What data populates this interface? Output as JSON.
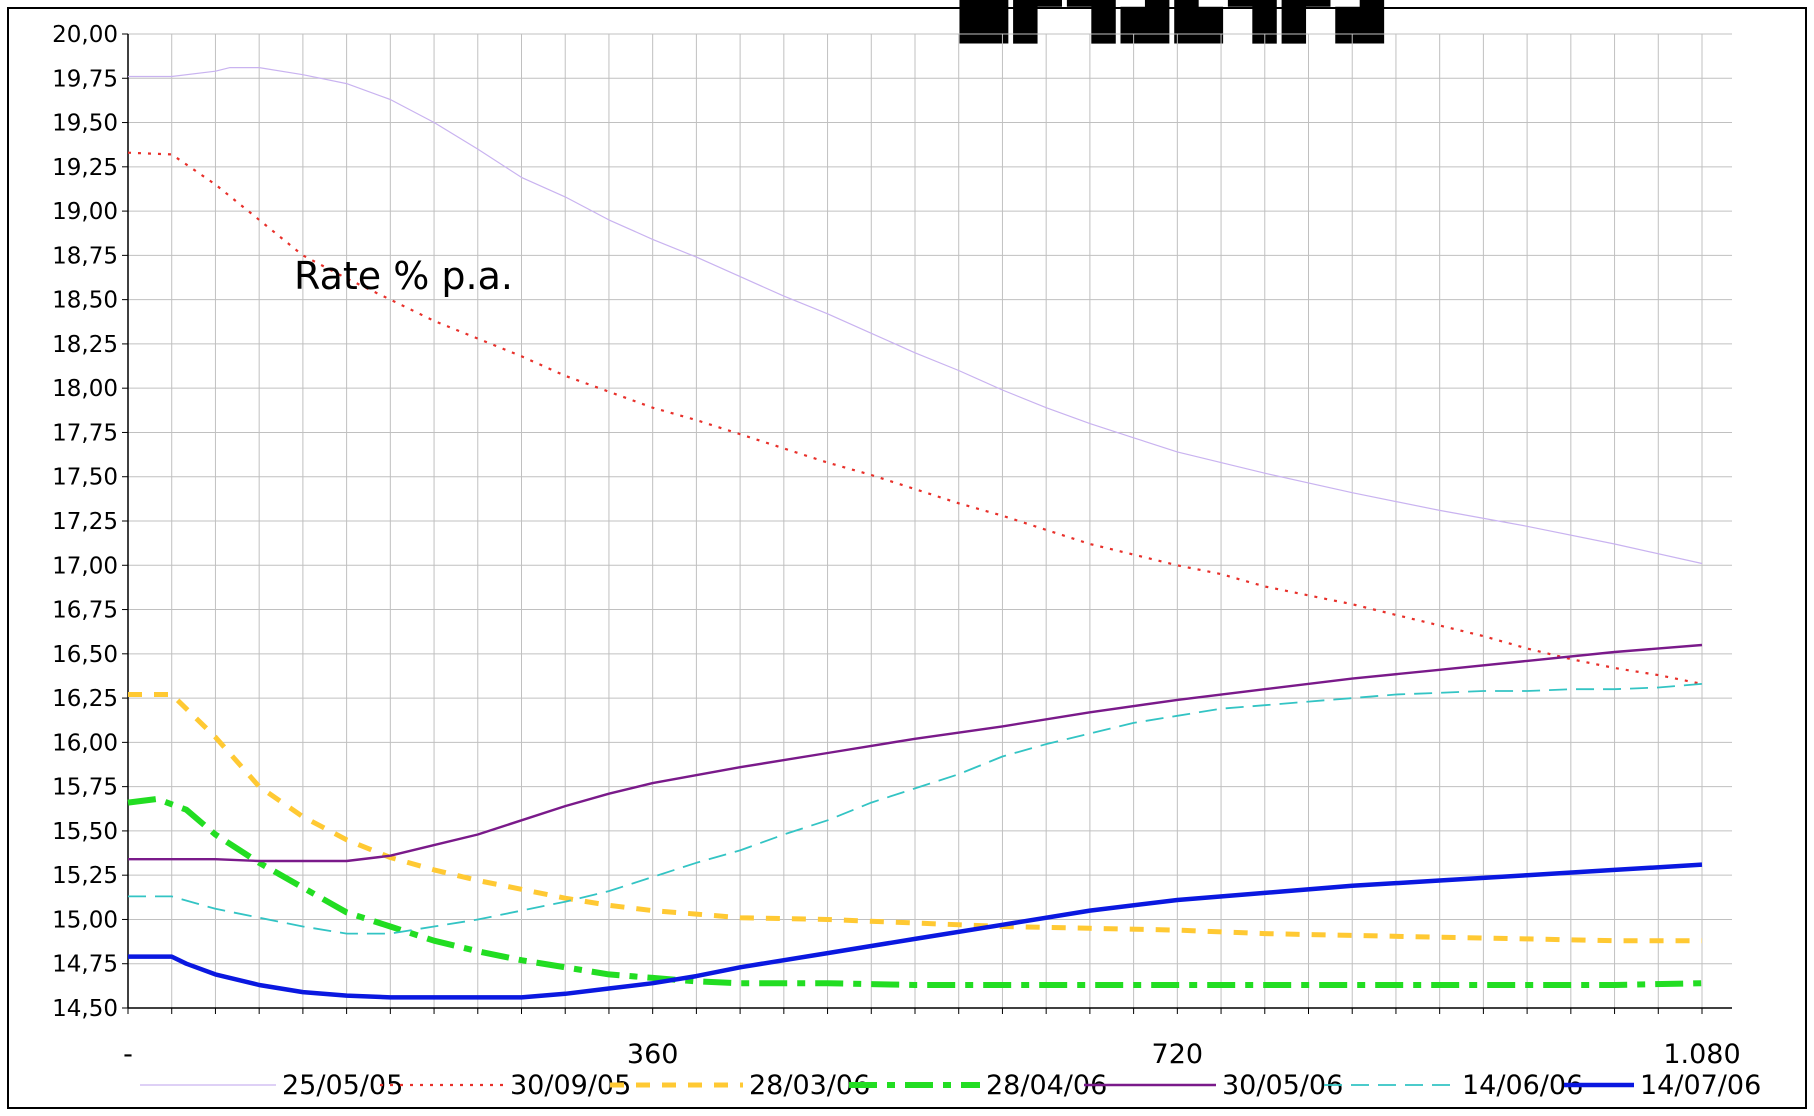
{
  "chart_data": {
    "type": "line",
    "title": "",
    "annotation": "Rate % p.a.",
    "xlabel": "",
    "ylabel": "",
    "xlim": [
      0,
      1080
    ],
    "ylim": [
      14.5,
      20.0
    ],
    "x_ticks": [
      0,
      360,
      720,
      1080
    ],
    "x_tick_labels": [
      "-",
      "360",
      "720",
      "1.080"
    ],
    "y_ticks": [
      14.5,
      14.75,
      15.0,
      15.25,
      15.5,
      15.75,
      16.0,
      16.25,
      16.5,
      16.75,
      17.0,
      17.25,
      17.5,
      17.75,
      18.0,
      18.25,
      18.5,
      18.75,
      19.0,
      19.25,
      19.5,
      19.75,
      20.0
    ],
    "y_tick_labels": [
      "14,50",
      "14,75",
      "15,00",
      "15,25",
      "15,50",
      "15,75",
      "16,00",
      "16,25",
      "16,50",
      "16,75",
      "17,00",
      "17,25",
      "17,50",
      "17,75",
      "18,00",
      "18,25",
      "18,50",
      "18,75",
      "19,00",
      "19,25",
      "19,50",
      "19,75",
      "20,00"
    ],
    "grid": true,
    "legend_position": "bottom",
    "series": [
      {
        "name": "25/05/05",
        "color": "#c9b3f0",
        "style": "solid-thin",
        "x": [
          0,
          30,
          60,
          70,
          90,
          120,
          150,
          180,
          210,
          240,
          270,
          300,
          330,
          360,
          390,
          420,
          450,
          480,
          510,
          540,
          570,
          600,
          630,
          660,
          690,
          720,
          780,
          840,
          900,
          960,
          1020,
          1080
        ],
        "y": [
          19.76,
          19.76,
          19.79,
          19.81,
          19.81,
          19.77,
          19.72,
          19.63,
          19.5,
          19.35,
          19.19,
          19.08,
          18.95,
          18.84,
          18.74,
          18.63,
          18.52,
          18.42,
          18.31,
          18.2,
          18.1,
          17.99,
          17.89,
          17.8,
          17.72,
          17.64,
          17.52,
          17.41,
          17.31,
          17.22,
          17.12,
          17.01
        ]
      },
      {
        "name": "30/09/05",
        "color": "#e8302a",
        "style": "dotted",
        "x": [
          0,
          30,
          60,
          90,
          120,
          150,
          180,
          210,
          240,
          270,
          300,
          330,
          360,
          390,
          420,
          450,
          480,
          510,
          540,
          570,
          600,
          630,
          660,
          690,
          720,
          750,
          780,
          810,
          840,
          870,
          900,
          930,
          960,
          990,
          1020,
          1050,
          1080
        ],
        "y": [
          19.33,
          19.32,
          19.15,
          18.95,
          18.75,
          18.62,
          18.5,
          18.38,
          18.28,
          18.18,
          18.07,
          17.98,
          17.89,
          17.82,
          17.74,
          17.66,
          17.58,
          17.51,
          17.43,
          17.35,
          17.28,
          17.2,
          17.12,
          17.06,
          17.0,
          16.95,
          16.88,
          16.83,
          16.78,
          16.72,
          16.66,
          16.6,
          16.53,
          16.47,
          16.42,
          16.38,
          16.33
        ]
      },
      {
        "name": "28/03/06",
        "color": "#ffc933",
        "style": "dashed",
        "x": [
          0,
          30,
          60,
          90,
          120,
          150,
          180,
          210,
          240,
          270,
          300,
          330,
          360,
          390,
          420,
          480,
          540,
          600,
          660,
          720,
          780,
          840,
          900,
          960,
          1020,
          1080
        ],
        "y": [
          16.27,
          16.27,
          16.03,
          15.75,
          15.58,
          15.45,
          15.35,
          15.28,
          15.22,
          15.17,
          15.12,
          15.08,
          15.05,
          15.03,
          15.01,
          15.0,
          14.98,
          14.96,
          14.95,
          14.94,
          14.92,
          14.91,
          14.9,
          14.89,
          14.88,
          14.88
        ]
      },
      {
        "name": "28/04/06",
        "color": "#22dd22",
        "style": "dashdot-thick",
        "x": [
          0,
          20,
          40,
          60,
          90,
          120,
          150,
          180,
          210,
          240,
          270,
          300,
          330,
          360,
          390,
          420,
          480,
          540,
          600,
          660,
          720,
          780,
          840,
          900,
          960,
          1020,
          1080
        ],
        "y": [
          15.66,
          15.68,
          15.62,
          15.48,
          15.32,
          15.18,
          15.04,
          14.96,
          14.88,
          14.82,
          14.77,
          14.73,
          14.69,
          14.67,
          14.65,
          14.64,
          14.64,
          14.63,
          14.63,
          14.63,
          14.63,
          14.63,
          14.63,
          14.63,
          14.63,
          14.63,
          14.64
        ]
      },
      {
        "name": "30/05/06",
        "color": "#7a1a8a",
        "style": "solid",
        "x": [
          0,
          30,
          60,
          90,
          120,
          150,
          170,
          180,
          210,
          240,
          270,
          300,
          330,
          360,
          420,
          480,
          540,
          600,
          660,
          720,
          780,
          840,
          900,
          960,
          1020,
          1080
        ],
        "y": [
          15.34,
          15.34,
          15.34,
          15.33,
          15.33,
          15.33,
          15.35,
          15.36,
          15.42,
          15.48,
          15.56,
          15.64,
          15.71,
          15.77,
          15.86,
          15.94,
          16.02,
          16.09,
          16.17,
          16.24,
          16.3,
          16.36,
          16.41,
          16.46,
          16.51,
          16.55
        ]
      },
      {
        "name": "14/06/06",
        "color": "#33c4c4",
        "style": "dashed-long",
        "x": [
          0,
          30,
          60,
          90,
          120,
          150,
          180,
          210,
          240,
          270,
          300,
          330,
          360,
          390,
          420,
          450,
          480,
          510,
          540,
          570,
          600,
          630,
          660,
          690,
          720,
          750,
          780,
          810,
          840,
          870,
          900,
          930,
          960,
          990,
          1020,
          1050,
          1080
        ],
        "y": [
          15.13,
          15.13,
          15.06,
          15.01,
          14.96,
          14.92,
          14.92,
          14.96,
          15.0,
          15.05,
          15.1,
          15.16,
          15.24,
          15.32,
          15.39,
          15.48,
          15.56,
          15.66,
          15.74,
          15.82,
          15.92,
          15.99,
          16.05,
          16.11,
          16.15,
          16.19,
          16.21,
          16.23,
          16.25,
          16.27,
          16.28,
          16.29,
          16.29,
          16.3,
          16.3,
          16.31,
          16.33
        ]
      },
      {
        "name": "14/07/06",
        "color": "#0a18e0",
        "style": "solid-thick",
        "x": [
          0,
          30,
          40,
          60,
          90,
          120,
          150,
          180,
          210,
          240,
          270,
          300,
          330,
          360,
          390,
          420,
          480,
          540,
          600,
          660,
          720,
          780,
          840,
          900,
          960,
          1020,
          1080
        ],
        "y": [
          14.79,
          14.79,
          14.75,
          14.69,
          14.63,
          14.59,
          14.57,
          14.56,
          14.56,
          14.56,
          14.56,
          14.58,
          14.61,
          14.64,
          14.68,
          14.73,
          14.81,
          14.89,
          14.97,
          15.05,
          15.11,
          15.15,
          15.19,
          15.22,
          15.25,
          15.28,
          15.31
        ]
      }
    ]
  }
}
